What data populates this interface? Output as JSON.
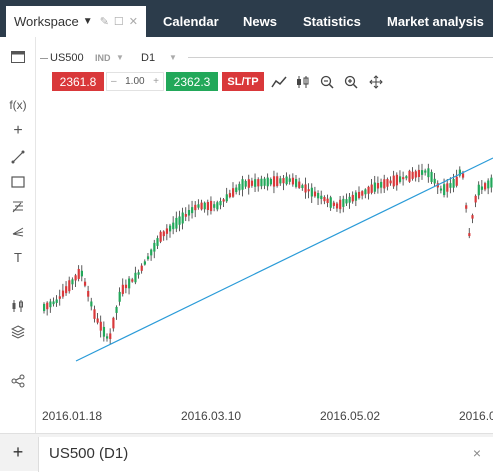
{
  "workspace": {
    "label": "Workspace"
  },
  "nav": [
    {
      "label": "Calendar"
    },
    {
      "label": "News"
    },
    {
      "label": "Statistics"
    },
    {
      "label": "Market analysis"
    }
  ],
  "chart_header": {
    "symbol": "US500",
    "ind": "IND",
    "timeframe": "D1"
  },
  "trade": {
    "sell": "2361.8",
    "qty": "1.00",
    "qty_minus": "–",
    "qty_plus": "+",
    "buy": "2362.3",
    "sltp": "SL/TP"
  },
  "left_tools": [
    "function-icon",
    "crosshair-icon",
    "trendline-icon",
    "rectangle-icon",
    "fibonacci-icon",
    "pitchfork-icon",
    "text-icon",
    "indicators-icon",
    "layers-icon",
    "share-icon"
  ],
  "left_labels": {
    "fx": "f(x)",
    "text": "T"
  },
  "colors": {
    "up": "#22a85a",
    "down": "#d9383a",
    "trendline": "#2a9bd8",
    "nav_bg": "#2c3c4b"
  },
  "x_axis": [
    "2016.01.18",
    "2016.03.10",
    "2016.05.02",
    "2016.0"
  ],
  "bottom": {
    "add": "+",
    "tab_label": "US500 (D1)",
    "close": "×"
  }
}
